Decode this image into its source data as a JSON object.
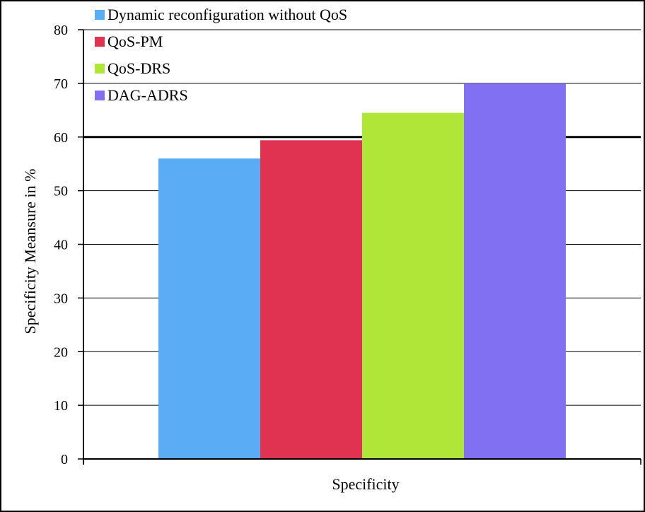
{
  "chart_data": {
    "type": "bar",
    "title": "",
    "categories": [
      "Specificity"
    ],
    "xlabel": "Specificity",
    "ylabel": "Specificity Meansure in %",
    "ylim": [
      0,
      80
    ],
    "yticks": [
      0,
      10,
      20,
      30,
      40,
      50,
      60,
      70,
      80
    ],
    "grid": true,
    "legend_position": "top-left",
    "series": [
      {
        "name": "Dynamic reconfiguration without QoS",
        "color": "#5aadf5",
        "values": [
          56
        ]
      },
      {
        "name": "QoS-PM",
        "color": "#e03352",
        "values": [
          59.4
        ]
      },
      {
        "name": "QoS-DRS",
        "color": "#b0e637",
        "values": [
          64.5
        ]
      },
      {
        "name": "DAG-ADRS",
        "color": "#8171f2",
        "values": [
          70
        ]
      }
    ]
  }
}
